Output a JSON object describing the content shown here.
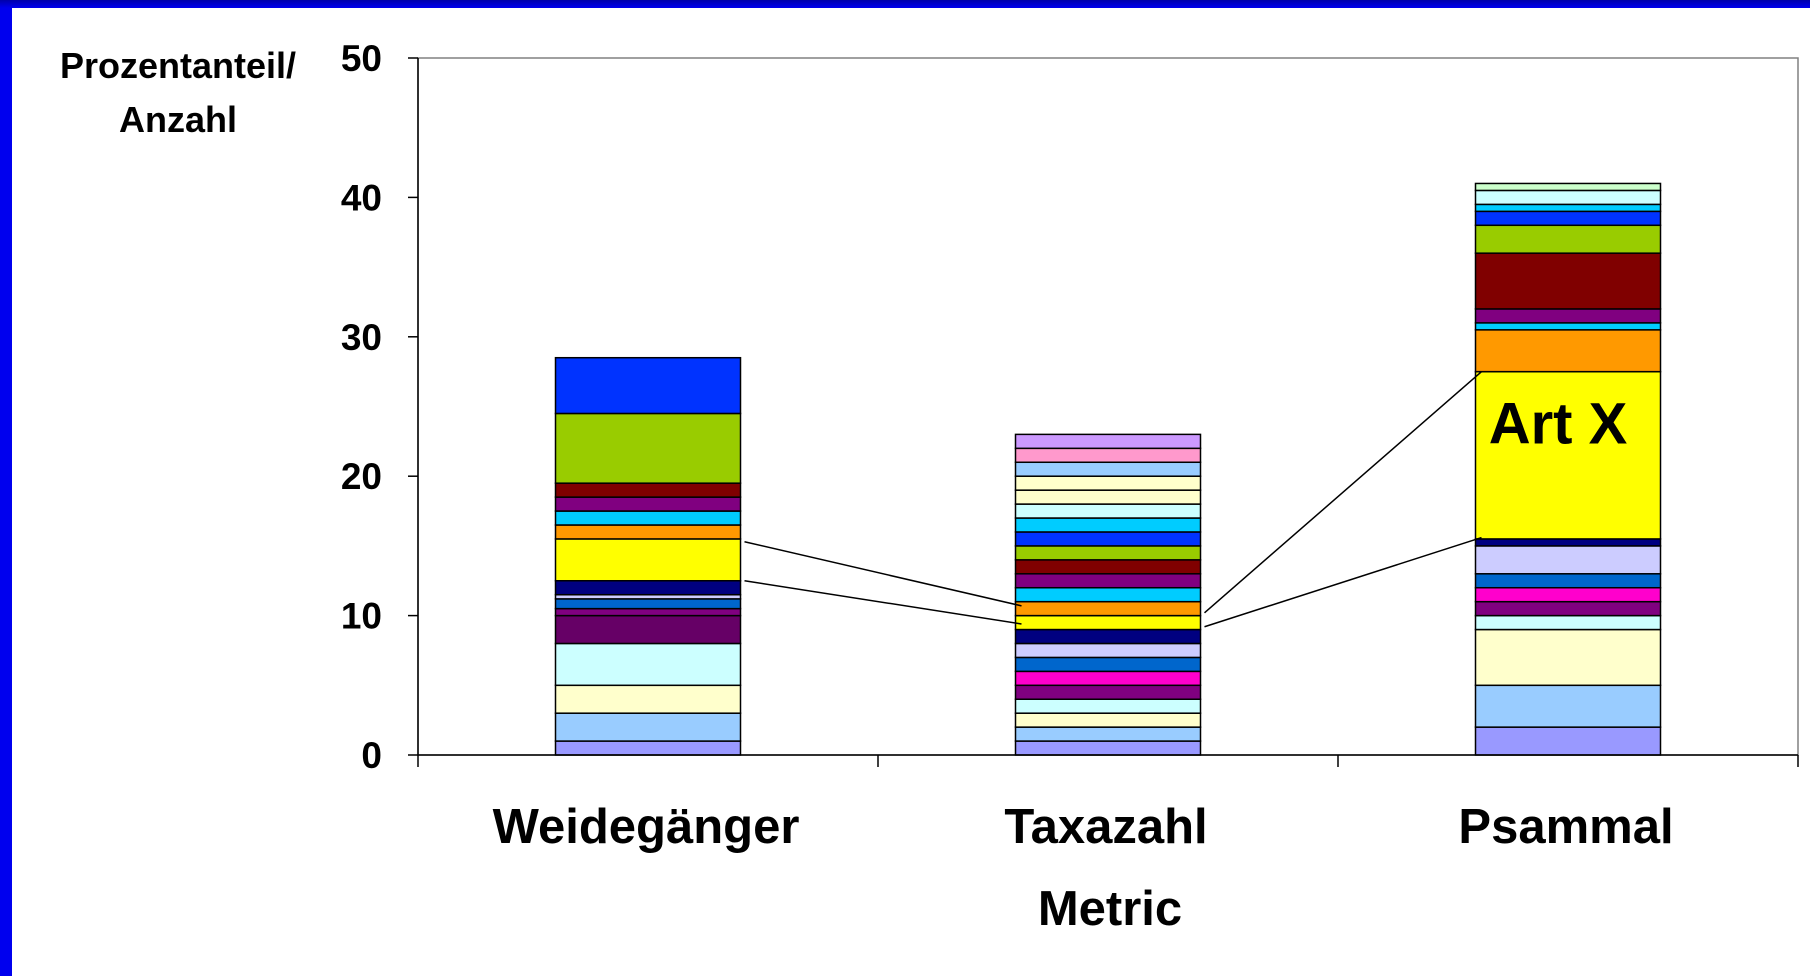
{
  "chart_data": {
    "type": "bar",
    "stacked": true,
    "categories": [
      "Weidegänger",
      "Taxazahl",
      "Psammal"
    ],
    "ylabel_lines": [
      "Prozentanteil/",
      "Anzahl"
    ],
    "xlabel": "Metric",
    "ylim": [
      0,
      50
    ],
    "yticks": [
      0,
      10,
      20,
      30,
      40,
      50
    ],
    "grid": false,
    "annotation": "Art X",
    "stacks": [
      {
        "category": "Weidegänger",
        "segments": [
          {
            "value": 1.0,
            "color": "#9999ff"
          },
          {
            "value": 2.0,
            "color": "#99ccff"
          },
          {
            "value": 2.0,
            "color": "#ffffcc"
          },
          {
            "value": 3.0,
            "color": "#ccffff"
          },
          {
            "value": 2.0,
            "color": "#660066"
          },
          {
            "value": 0.5,
            "color": "#800080"
          },
          {
            "value": 0.7,
            "color": "#0066cc"
          },
          {
            "value": 0.3,
            "color": "#ccccff"
          },
          {
            "value": 1.0,
            "color": "#000080"
          },
          {
            "value": 3.0,
            "color": "#ffff00"
          },
          {
            "value": 1.0,
            "color": "#ff9900"
          },
          {
            "value": 1.0,
            "color": "#00ccff"
          },
          {
            "value": 1.0,
            "color": "#800080"
          },
          {
            "value": 1.0,
            "color": "#800000"
          },
          {
            "value": 5.0,
            "color": "#99cc00"
          },
          {
            "value": 4.0,
            "color": "#0033ff"
          }
        ]
      },
      {
        "category": "Taxazahl",
        "segments": [
          {
            "value": 1,
            "color": "#9999ff"
          },
          {
            "value": 1,
            "color": "#99ccff"
          },
          {
            "value": 1,
            "color": "#ffffcc"
          },
          {
            "value": 1,
            "color": "#ccffff"
          },
          {
            "value": 1,
            "color": "#800080"
          },
          {
            "value": 1,
            "color": "#ff00cc"
          },
          {
            "value": 1,
            "color": "#0066cc"
          },
          {
            "value": 1,
            "color": "#ccccff"
          },
          {
            "value": 1,
            "color": "#000080"
          },
          {
            "value": 1,
            "color": "#ffff00"
          },
          {
            "value": 1,
            "color": "#ff9900"
          },
          {
            "value": 1,
            "color": "#00ccff"
          },
          {
            "value": 1,
            "color": "#800080"
          },
          {
            "value": 1,
            "color": "#800000"
          },
          {
            "value": 1,
            "color": "#99cc00"
          },
          {
            "value": 1,
            "color": "#0033ff"
          },
          {
            "value": 1,
            "color": "#00ccff"
          },
          {
            "value": 1,
            "color": "#ccffff"
          },
          {
            "value": 1,
            "color": "#ffffcc"
          },
          {
            "value": 1,
            "color": "#ffffcc"
          },
          {
            "value": 1,
            "color": "#99ccff"
          },
          {
            "value": 1,
            "color": "#ff99cc"
          },
          {
            "value": 1,
            "color": "#cc99ff"
          }
        ]
      },
      {
        "category": "Psammal",
        "segments": [
          {
            "value": 2.0,
            "color": "#9999ff"
          },
          {
            "value": 3.0,
            "color": "#99ccff"
          },
          {
            "value": 4.0,
            "color": "#ffffcc"
          },
          {
            "value": 1.0,
            "color": "#ccffff"
          },
          {
            "value": 1.0,
            "color": "#800080"
          },
          {
            "value": 1.0,
            "color": "#ff00cc"
          },
          {
            "value": 1.0,
            "color": "#0066cc"
          },
          {
            "value": 2.0,
            "color": "#ccccff"
          },
          {
            "value": 0.5,
            "color": "#000080"
          },
          {
            "value": 12.0,
            "color": "#ffff00",
            "label": "Art X"
          },
          {
            "value": 3.0,
            "color": "#ff9900"
          },
          {
            "value": 0.5,
            "color": "#00ccff"
          },
          {
            "value": 1.0,
            "color": "#800080"
          },
          {
            "value": 4.0,
            "color": "#800000"
          },
          {
            "value": 2.0,
            "color": "#99cc00"
          },
          {
            "value": 1.0,
            "color": "#0033ff"
          },
          {
            "value": 0.5,
            "color": "#00ccff"
          },
          {
            "value": 1.0,
            "color": "#ccffff"
          },
          {
            "value": 0.5,
            "color": "#ccffcc"
          }
        ]
      }
    ],
    "connectors": [
      {
        "from_category": "Weidegänger",
        "from_value": 15.3,
        "to_category": "Taxazahl",
        "to_value": 10.7
      },
      {
        "from_category": "Weidegänger",
        "from_value": 12.5,
        "to_category": "Taxazahl",
        "to_value": 9.4
      },
      {
        "from_category": "Taxazahl",
        "from_value": 10.2,
        "to_category": "Psammal",
        "to_value": 27.5
      },
      {
        "from_category": "Taxazahl",
        "from_value": 9.2,
        "to_category": "Psammal",
        "to_value": 15.6
      }
    ]
  }
}
